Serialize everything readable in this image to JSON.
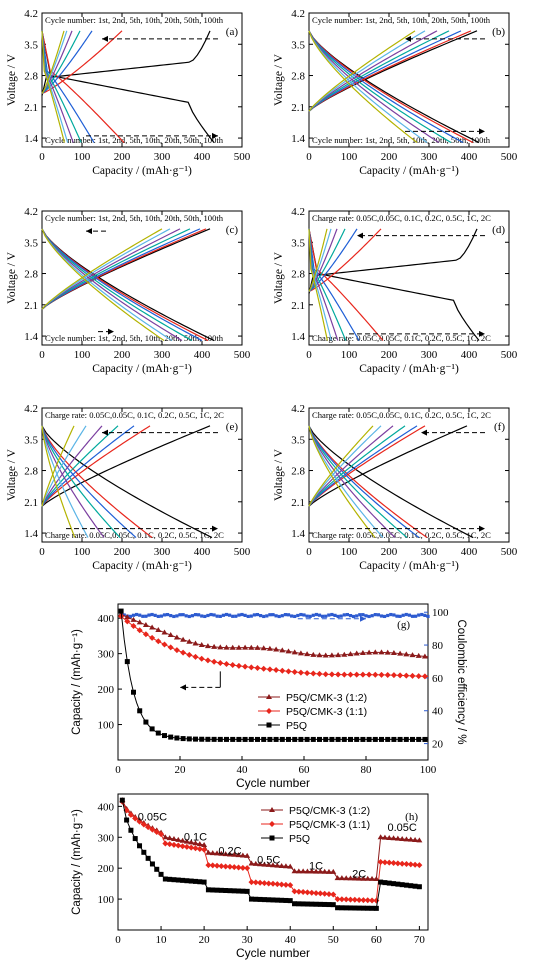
{
  "colors": {
    "c1": "#000000",
    "c2": "#e8261c",
    "c3": "#1f5fd6",
    "c4": "#00a99d",
    "c5": "#7b3fa0",
    "c6": "#5ab4e6",
    "c7": "#b3b300",
    "charge_marker": "#8b1a1a",
    "red_marker": "#e8261c",
    "ce_marker": "#2d5bd0"
  },
  "chart_data": [
    {
      "type": "line",
      "label": "(a)",
      "xlabel": "Capacity / (mAh·g⁻¹)",
      "ylabel": "Voltage / V",
      "xlim": [
        0,
        500
      ],
      "ylim": [
        1.2,
        4.2
      ],
      "xticks": [
        "0",
        "100",
        "200",
        "300",
        "400",
        "500"
      ],
      "yticks": [
        "1.4",
        "2.1",
        "2.8",
        "3.5",
        "4.2"
      ],
      "top_note": "Cycle number: 1st, 2nd, 5th, 10th, 20th, 50th, 100th",
      "bottom_note": "Cycle number: 1st, 2nd, 5th, 10th, 20th, 50th, 100th",
      "arrow_top": {
        "y": 3.62,
        "x_from": 440,
        "x_to": 150
      },
      "arrow_bottom": {
        "y": 1.45,
        "x_from": 110,
        "x_to": 440
      },
      "charge_caps": [
        420,
        200,
        125,
        95,
        75,
        62,
        55
      ],
      "discharge_caps": [
        430,
        205,
        130,
        98,
        78,
        64,
        56
      ],
      "style": "plateau"
    },
    {
      "type": "line",
      "label": "(b)",
      "xlabel": "Capacity / (mAh·g⁻¹)",
      "ylabel": "Voltage / V",
      "xlim": [
        0,
        500
      ],
      "ylim": [
        1.2,
        4.2
      ],
      "xticks": [
        "0",
        "100",
        "200",
        "300",
        "400",
        "500"
      ],
      "yticks": [
        "1.4",
        "2.1",
        "2.8",
        "3.5",
        "4.2"
      ],
      "top_note": "Cycle number: 1st, 2nd, 5th, 10th, 20th, 50th, 100th",
      "bottom_note": "Cycle number: 1st, 2nd, 5th, 10th, 20th, 50th, 100th",
      "arrow_top": {
        "y": 3.62,
        "x_from": 440,
        "x_to": 240
      },
      "arrow_bottom": {
        "y": 1.55,
        "x_from": 240,
        "x_to": 440
      },
      "charge_caps": [
        420,
        405,
        380,
        350,
        320,
        290,
        265
      ],
      "discharge_caps": [
        425,
        410,
        385,
        355,
        325,
        295,
        270
      ],
      "style": "slope"
    },
    {
      "type": "line",
      "label": "(c)",
      "xlabel": "Capacity / (mAh·g⁻¹)",
      "ylabel": "Voltage / V",
      "xlim": [
        0,
        500
      ],
      "ylim": [
        1.2,
        4.2
      ],
      "xticks": [
        "0",
        "100",
        "200",
        "300",
        "400",
        "500"
      ],
      "yticks": [
        "1.4",
        "2.1",
        "2.8",
        "3.5",
        "4.2"
      ],
      "top_note": "Cycle number: 1st, 2nd, 5th, 10th, 20th, 50th, 100th",
      "bottom_note": "Cycle number: 1st, 2nd, 5th, 10th, 20th, 50th, 100th",
      "arrow_top": {
        "y": 3.75,
        "x_from": 160,
        "x_to": 110
      },
      "arrow_bottom": {
        "y": 1.5,
        "x_from": 140,
        "x_to": 180
      },
      "charge_caps": [
        420,
        410,
        395,
        370,
        345,
        320,
        300
      ],
      "discharge_caps": [
        430,
        415,
        400,
        375,
        350,
        325,
        305
      ],
      "style": "slope"
    },
    {
      "type": "line",
      "label": "(d)",
      "xlabel": "Capacity / (mAh·g⁻¹)",
      "ylabel": "Voltage / V",
      "xlim": [
        0,
        500
      ],
      "ylim": [
        1.2,
        4.2
      ],
      "xticks": [
        "0",
        "100",
        "200",
        "300",
        "400",
        "500"
      ],
      "yticks": [
        "1.4",
        "2.1",
        "2.8",
        "3.5",
        "4.2"
      ],
      "top_note": "Charge rate: 0.05C,0.05C, 0.1C, 0.2C, 0.5C, 1C, 2C",
      "bottom_note": "Charge rate: 0.05C,0.05C, 0.1C, 0.2C, 0.5C, 1C, 2C",
      "arrow_top": {
        "y": 3.65,
        "x_from": 440,
        "x_to": 120
      },
      "arrow_bottom": {
        "y": 1.45,
        "x_from": 100,
        "x_to": 440
      },
      "charge_caps": [
        420,
        180,
        120,
        90,
        70,
        55,
        45
      ],
      "discharge_caps": [
        425,
        185,
        125,
        92,
        72,
        56,
        46
      ],
      "style": "plateau"
    },
    {
      "type": "line",
      "label": "(e)",
      "xlabel": "Capacity / (mAh·g⁻¹)",
      "ylabel": "Voltage / V",
      "xlim": [
        0,
        500
      ],
      "ylim": [
        1.2,
        4.2
      ],
      "xticks": [
        "0",
        "100",
        "200",
        "300",
        "400",
        "500"
      ],
      "yticks": [
        "1.4",
        "2.1",
        "2.8",
        "3.5",
        "4.2"
      ],
      "top_note": "Charge rate: 0.05C,0.05C, 0.1C, 0.2C, 0.5C, 1C, 2C",
      "bottom_note": "Charge rate: 0.05C,0.05C, 0.1C, 0.2C, 0.5C, 1C, 2C",
      "arrow_top": {
        "y": 3.65,
        "x_from": 440,
        "x_to": 150
      },
      "arrow_bottom": {
        "y": 1.5,
        "x_from": 60,
        "x_to": 440
      },
      "charge_caps": [
        420,
        270,
        230,
        190,
        150,
        110,
        80
      ],
      "discharge_caps": [
        425,
        275,
        235,
        195,
        155,
        115,
        82
      ],
      "style": "slope"
    },
    {
      "type": "line",
      "label": "(f)",
      "xlabel": "Capacity / (mAh·g⁻¹)",
      "ylabel": "Voltage / V",
      "xlim": [
        0,
        500
      ],
      "ylim": [
        1.2,
        4.2
      ],
      "xticks": [
        "0",
        "100",
        "200",
        "300",
        "400",
        "500"
      ],
      "yticks": [
        "1.4",
        "2.1",
        "2.8",
        "3.5",
        "4.2"
      ],
      "top_note": "Charge rate: 0.05C,0.05C, 0.1C, 0.2C, 0.5C, 1C, 2C",
      "bottom_note": "Charge rate: 0.05C,0.05C, 0.1C, 0.2C, 0.5C, 1C, 2C",
      "arrow_top": {
        "y": 3.65,
        "x_from": 440,
        "x_to": 280
      },
      "arrow_bottom": {
        "y": 1.5,
        "x_from": 80,
        "x_to": 440
      },
      "charge_caps": [
        395,
        290,
        270,
        240,
        210,
        180,
        160
      ],
      "discharge_caps": [
        410,
        295,
        275,
        245,
        215,
        185,
        165
      ],
      "style": "slope"
    },
    {
      "type": "line",
      "label": "(g)",
      "xlabel": "Cycle number",
      "ylabel": "Capacity / (mAh·g⁻¹)",
      "y2label": "Coulombic efficiency / %",
      "xlim": [
        0,
        100
      ],
      "ylim": [
        0,
        440
      ],
      "y2lim": [
        10,
        105
      ],
      "xticks": [
        "0",
        "20",
        "40",
        "60",
        "80",
        "100"
      ],
      "yticks": [
        "100",
        "200",
        "300",
        "400"
      ],
      "y2ticks": [
        "20",
        "40",
        "60",
        "80",
        "100"
      ],
      "legend": [
        "P5Q/CMK-3 (1:2)",
        "P5Q/CMK-3 (1:1)",
        "P5Q"
      ],
      "series": [
        {
          "name": "P5Q/CMK-3 (1:2)",
          "start": 410,
          "end": 295,
          "dip": 20
        },
        {
          "name": "P5Q/CMK-3 (1:1)",
          "start": 405,
          "end": 235,
          "dip": 5
        },
        {
          "name": "P5Q",
          "start": 420,
          "end": 58,
          "dip": 0
        }
      ],
      "coulombic_efficiency": 98
    },
    {
      "type": "line",
      "label": "(h)",
      "xlabel": "Cycle number",
      "ylabel": "Capacity / (mAh·g⁻¹)",
      "xlim": [
        0,
        72
      ],
      "ylim": [
        0,
        440
      ],
      "xticks": [
        "0",
        "10",
        "20",
        "30",
        "40",
        "50",
        "60",
        "70"
      ],
      "yticks": [
        "100",
        "200",
        "300",
        "400"
      ],
      "legend": [
        "P5Q/CMK-3 (1:2)",
        "P5Q/CMK-3 (1:1)",
        "P5Q"
      ],
      "rate_labels": [
        "0.05C",
        "0.1C",
        "0.2C",
        "0.5C",
        "1C",
        "2C",
        "0.05C"
      ],
      "series": [
        {
          "name": "P5Q/CMK-3 (1:2)",
          "steps": [
            [
              420,
              315
            ],
            [
              300,
              275
            ],
            [
              250,
              240
            ],
            [
              215,
              205
            ],
            [
              190,
              188
            ],
            [
              168,
              165
            ],
            [
              300,
              290
            ]
          ]
        },
        {
          "name": "P5Q/CMK-3 (1:1)",
          "steps": [
            [
              415,
              310
            ],
            [
              280,
              260
            ],
            [
              210,
              200
            ],
            [
              155,
              145
            ],
            [
              125,
              115
            ],
            [
              100,
              95
            ],
            [
              220,
              210
            ]
          ]
        },
        {
          "name": "P5Q",
          "steps": [
            [
              420,
              180
            ],
            [
              165,
              155
            ],
            [
              130,
              125
            ],
            [
              100,
              95
            ],
            [
              85,
              82
            ],
            [
              72,
              70
            ],
            [
              155,
              140
            ]
          ]
        }
      ]
    }
  ]
}
